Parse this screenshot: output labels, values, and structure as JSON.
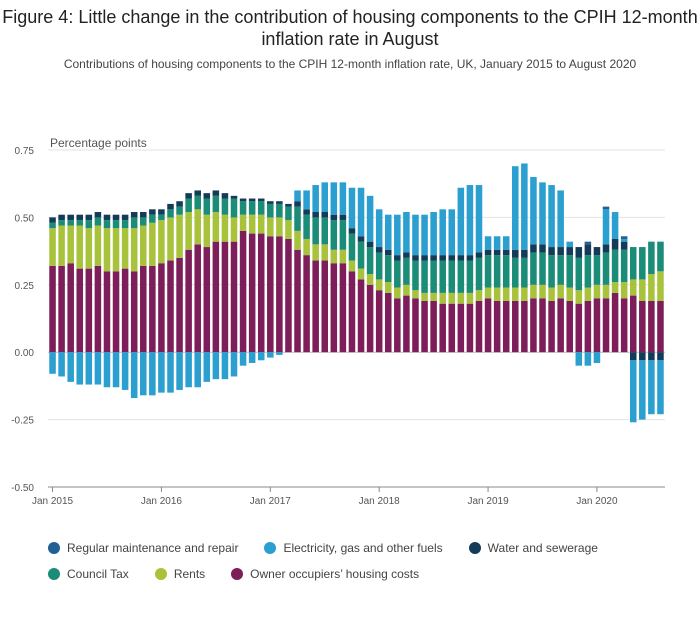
{
  "title": "Figure 4: Little change in the contribution of housing components to the CPIH 12-month inflation rate in August",
  "subtitle": "Contributions of housing components to the CPIH 12-month inflation rate, UK, January 2015 to August 2020",
  "chart_data": {
    "type": "bar",
    "stacked": true,
    "ylabel": "Percentage points",
    "xlabel": "",
    "ylim": [
      -0.5,
      0.75
    ],
    "yticks": [
      "0.75",
      "0.50",
      "0.25",
      "0.00",
      "-0.25",
      "-0.50"
    ],
    "ytick_values": [
      0.75,
      0.5,
      0.25,
      0.0,
      -0.25,
      -0.5
    ],
    "xtick_labels": [
      "Jan 2015",
      "Jan 2016",
      "Jan 2017",
      "Jan 2018",
      "Jan 2019",
      "Jan 2020"
    ],
    "xtick_index": [
      0,
      12,
      24,
      36,
      48,
      60
    ],
    "grid": true,
    "legend_position": "bottom",
    "categories": [
      "2015-01",
      "2015-02",
      "2015-03",
      "2015-04",
      "2015-05",
      "2015-06",
      "2015-07",
      "2015-08",
      "2015-09",
      "2015-10",
      "2015-11",
      "2015-12",
      "2016-01",
      "2016-02",
      "2016-03",
      "2016-04",
      "2016-05",
      "2016-06",
      "2016-07",
      "2016-08",
      "2016-09",
      "2016-10",
      "2016-11",
      "2016-12",
      "2017-01",
      "2017-02",
      "2017-03",
      "2017-04",
      "2017-05",
      "2017-06",
      "2017-07",
      "2017-08",
      "2017-09",
      "2017-10",
      "2017-11",
      "2017-12",
      "2018-01",
      "2018-02",
      "2018-03",
      "2018-04",
      "2018-05",
      "2018-06",
      "2018-07",
      "2018-08",
      "2018-09",
      "2018-10",
      "2018-11",
      "2018-12",
      "2019-01",
      "2019-02",
      "2019-03",
      "2019-04",
      "2019-05",
      "2019-06",
      "2019-07",
      "2019-08",
      "2019-09",
      "2019-10",
      "2019-11",
      "2019-12",
      "2020-01",
      "2020-02",
      "2020-03",
      "2020-04",
      "2020-05",
      "2020-06",
      "2020-07",
      "2020-08"
    ],
    "series": [
      {
        "name": "Owner occupiers’ housing costs",
        "color": "#7d1e5a",
        "values": [
          0.32,
          0.32,
          0.33,
          0.31,
          0.31,
          0.32,
          0.3,
          0.3,
          0.31,
          0.3,
          0.32,
          0.32,
          0.33,
          0.34,
          0.35,
          0.38,
          0.4,
          0.39,
          0.41,
          0.41,
          0.41,
          0.45,
          0.44,
          0.44,
          0.43,
          0.43,
          0.42,
          0.38,
          0.36,
          0.34,
          0.34,
          0.33,
          0.33,
          0.3,
          0.27,
          0.25,
          0.23,
          0.22,
          0.2,
          0.21,
          0.2,
          0.19,
          0.19,
          0.18,
          0.18,
          0.18,
          0.18,
          0.19,
          0.2,
          0.19,
          0.19,
          0.19,
          0.19,
          0.2,
          0.2,
          0.19,
          0.2,
          0.19,
          0.18,
          0.19,
          0.2,
          0.2,
          0.22,
          0.2,
          0.21,
          0.19,
          0.19,
          0.19
        ]
      },
      {
        "name": "Rents",
        "color": "#a8c23c",
        "values": [
          0.14,
          0.15,
          0.14,
          0.16,
          0.15,
          0.15,
          0.16,
          0.16,
          0.15,
          0.16,
          0.15,
          0.16,
          0.16,
          0.16,
          0.16,
          0.14,
          0.13,
          0.12,
          0.11,
          0.1,
          0.09,
          0.06,
          0.07,
          0.07,
          0.07,
          0.07,
          0.07,
          0.07,
          0.06,
          0.06,
          0.06,
          0.05,
          0.05,
          0.04,
          0.04,
          0.04,
          0.04,
          0.04,
          0.04,
          0.04,
          0.03,
          0.03,
          0.03,
          0.04,
          0.04,
          0.04,
          0.04,
          0.04,
          0.04,
          0.05,
          0.05,
          0.05,
          0.05,
          0.05,
          0.05,
          0.05,
          0.05,
          0.05,
          0.05,
          0.05,
          0.05,
          0.05,
          0.04,
          0.06,
          0.06,
          0.08,
          0.1,
          0.11
        ]
      },
      {
        "name": "Council Tax",
        "color": "#1a8c77",
        "values": [
          0.02,
          0.02,
          0.02,
          0.02,
          0.03,
          0.03,
          0.03,
          0.03,
          0.03,
          0.04,
          0.03,
          0.03,
          0.02,
          0.03,
          0.03,
          0.05,
          0.05,
          0.06,
          0.06,
          0.06,
          0.07,
          0.05,
          0.05,
          0.05,
          0.05,
          0.05,
          0.05,
          0.09,
          0.09,
          0.1,
          0.1,
          0.11,
          0.11,
          0.1,
          0.1,
          0.1,
          0.1,
          0.1,
          0.1,
          0.1,
          0.11,
          0.12,
          0.12,
          0.12,
          0.12,
          0.12,
          0.12,
          0.12,
          0.12,
          0.12,
          0.12,
          0.11,
          0.11,
          0.12,
          0.12,
          0.12,
          0.11,
          0.12,
          0.12,
          0.12,
          0.11,
          0.12,
          0.12,
          0.12,
          0.12,
          0.12,
          0.12,
          0.11
        ]
      },
      {
        "name": "Water and sewerage",
        "color": "#143c58",
        "values": [
          0.02,
          0.02,
          0.02,
          0.02,
          0.02,
          0.02,
          0.02,
          0.02,
          0.02,
          0.02,
          0.02,
          0.02,
          0.02,
          0.02,
          0.02,
          0.02,
          0.02,
          0.02,
          0.02,
          0.02,
          0.01,
          0.01,
          0.01,
          0.01,
          0.01,
          0.01,
          0.01,
          0.02,
          0.02,
          0.02,
          0.02,
          0.02,
          0.02,
          0.02,
          0.02,
          0.02,
          0.02,
          0.02,
          0.02,
          0.02,
          0.02,
          0.02,
          0.02,
          0.02,
          0.02,
          0.02,
          0.02,
          0.02,
          0.02,
          0.02,
          0.02,
          0.03,
          0.03,
          0.03,
          0.03,
          0.03,
          0.03,
          0.03,
          0.04,
          0.04,
          0.03,
          0.03,
          0.04,
          0.03,
          -0.03,
          -0.03,
          -0.03,
          -0.03
        ]
      },
      {
        "name": "Electricity, gas and other fuels",
        "color": "#2a9fd0",
        "values": [
          -0.08,
          -0.09,
          -0.11,
          -0.12,
          -0.12,
          -0.12,
          -0.13,
          -0.13,
          -0.14,
          -0.17,
          -0.16,
          -0.16,
          -0.15,
          -0.15,
          -0.14,
          -0.13,
          -0.13,
          -0.11,
          -0.1,
          -0.1,
          -0.09,
          -0.05,
          -0.04,
          -0.03,
          -0.02,
          -0.01,
          0.0,
          0.04,
          0.07,
          0.1,
          0.11,
          0.12,
          0.12,
          0.15,
          0.18,
          0.17,
          0.14,
          0.13,
          0.15,
          0.15,
          0.15,
          0.15,
          0.16,
          0.17,
          0.17,
          0.25,
          0.26,
          0.25,
          0.05,
          0.05,
          0.05,
          0.31,
          0.32,
          0.25,
          0.23,
          0.23,
          0.21,
          0.02,
          -0.05,
          -0.05,
          -0.04,
          0.13,
          0.1,
          0.01,
          -0.23,
          -0.22,
          -0.2,
          -0.2
        ]
      },
      {
        "name": "Regular maintenance and repair",
        "color": "#206095",
        "values": [
          0.0,
          0.0,
          0.0,
          0.0,
          0.0,
          0.0,
          0.0,
          0.0,
          0.0,
          0.0,
          0.0,
          0.0,
          0.0,
          0.0,
          0.0,
          0.0,
          0.0,
          0.0,
          0.0,
          0.0,
          0.0,
          0.0,
          0.0,
          0.0,
          0.0,
          0.0,
          0.0,
          0.0,
          0.0,
          0.0,
          0.0,
          0.0,
          0.0,
          0.0,
          0.0,
          0.0,
          0.0,
          0.0,
          0.0,
          0.0,
          0.0,
          0.0,
          0.0,
          0.0,
          0.0,
          0.0,
          0.0,
          0.0,
          0.0,
          0.0,
          0.0,
          0.0,
          0.0,
          0.0,
          0.0,
          0.0,
          0.0,
          0.0,
          0.0,
          0.01,
          0.0,
          0.01,
          0.0,
          0.01,
          0.0,
          0.0,
          0.0,
          0.0
        ]
      }
    ]
  },
  "legend": [
    {
      "label": "Regular maintenance and repair",
      "color": "#206095"
    },
    {
      "label": "Electricity, gas and other fuels",
      "color": "#2a9fd0"
    },
    {
      "label": "Water and sewerage",
      "color": "#143c58"
    },
    {
      "label": "Council Tax",
      "color": "#1a8c77"
    },
    {
      "label": "Rents",
      "color": "#a8c23c"
    },
    {
      "label": "Owner occupiers’ housing costs",
      "color": "#7d1e5a"
    }
  ]
}
